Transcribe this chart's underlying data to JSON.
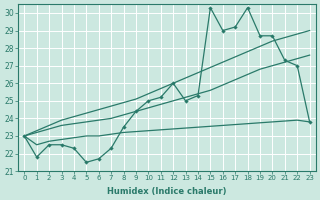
{
  "xlabel": "Humidex (Indice chaleur)",
  "background_color": "#cce8e0",
  "line_color": "#2a7a6a",
  "x": [
    0,
    1,
    2,
    3,
    4,
    5,
    6,
    7,
    8,
    9,
    10,
    11,
    12,
    13,
    14,
    15,
    16,
    17,
    18,
    19,
    20,
    21,
    22,
    23
  ],
  "y_main": [
    23.0,
    21.8,
    22.5,
    22.5,
    22.3,
    21.5,
    21.7,
    22.3,
    23.5,
    24.4,
    25.0,
    25.2,
    26.0,
    25.0,
    25.3,
    30.3,
    29.0,
    29.2,
    30.3,
    28.7,
    28.7,
    27.3,
    27.0,
    23.8
  ],
  "y_lin_hi": [
    23.0,
    23.3,
    23.6,
    23.9,
    24.1,
    24.3,
    24.5,
    24.7,
    24.9,
    25.1,
    25.4,
    25.7,
    26.0,
    26.3,
    26.6,
    26.9,
    27.2,
    27.5,
    27.8,
    28.1,
    28.4,
    28.6,
    28.8,
    29.0
  ],
  "y_lin_lo": [
    23.0,
    23.2,
    23.4,
    23.6,
    23.7,
    23.8,
    23.9,
    24.0,
    24.2,
    24.4,
    24.6,
    24.8,
    25.0,
    25.2,
    25.4,
    25.6,
    25.9,
    26.2,
    26.5,
    26.8,
    27.0,
    27.2,
    27.4,
    27.6
  ],
  "y_flat": [
    23.0,
    22.5,
    22.7,
    22.8,
    22.9,
    23.0,
    23.0,
    23.1,
    23.2,
    23.25,
    23.3,
    23.35,
    23.4,
    23.45,
    23.5,
    23.55,
    23.6,
    23.65,
    23.7,
    23.75,
    23.8,
    23.85,
    23.9,
    23.8
  ],
  "xlim": [
    -0.5,
    23.5
  ],
  "ylim": [
    21.0,
    30.5
  ],
  "yticks": [
    21,
    22,
    23,
    24,
    25,
    26,
    27,
    28,
    29,
    30
  ],
  "xticks": [
    0,
    1,
    2,
    3,
    4,
    5,
    6,
    7,
    8,
    9,
    10,
    11,
    12,
    13,
    14,
    15,
    16,
    17,
    18,
    19,
    20,
    21,
    22,
    23
  ]
}
